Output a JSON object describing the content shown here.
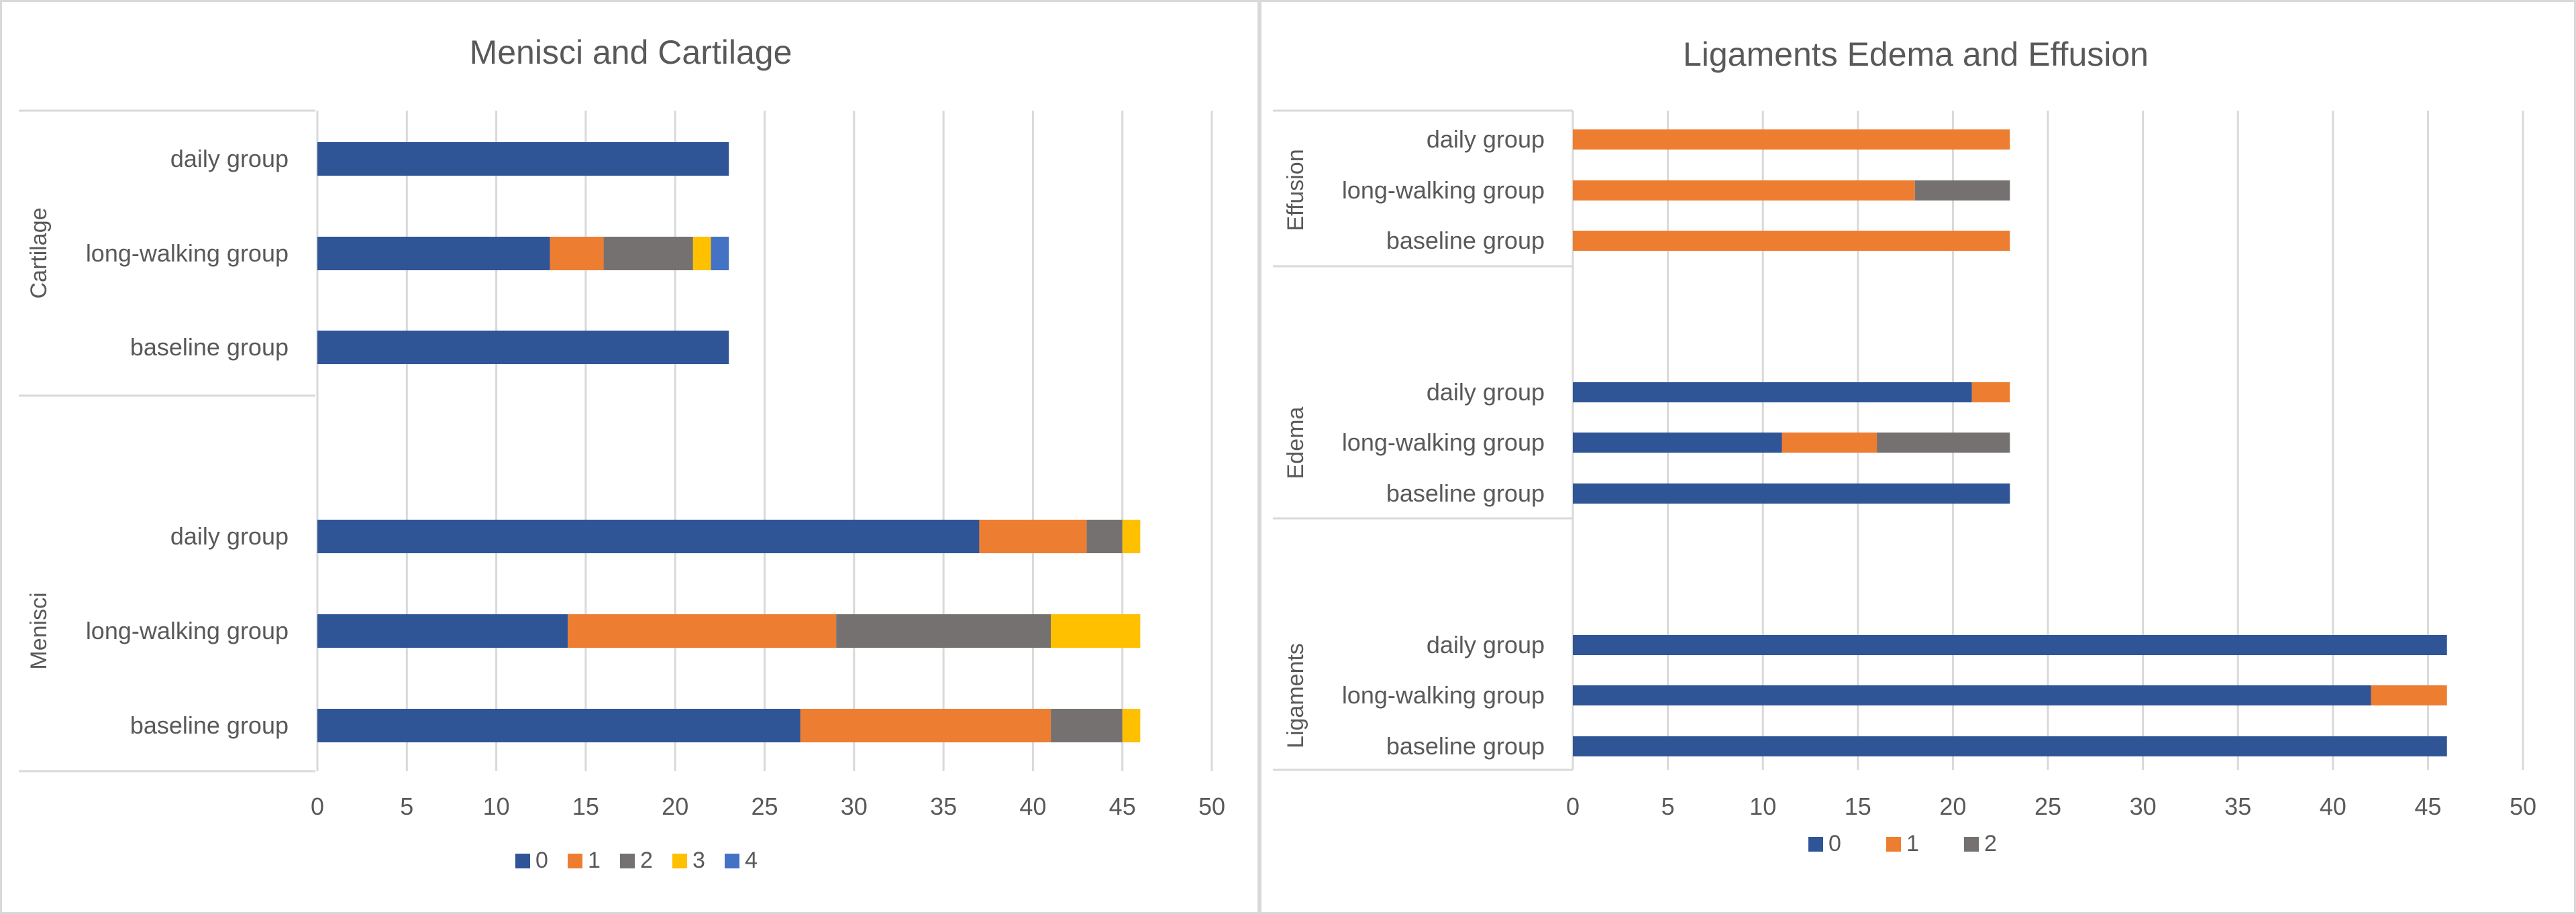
{
  "chart_data": [
    {
      "type": "bar",
      "orientation": "horizontal",
      "stacked": true,
      "title": "Menisci and Cartilage",
      "xlim": [
        0,
        50
      ],
      "x_ticks": [
        "0",
        "5",
        "10",
        "15",
        "20",
        "25",
        "30",
        "35",
        "40",
        "45",
        "50"
      ],
      "grid": true,
      "legend_position": "bottom",
      "legend": [
        "0",
        "1",
        "2",
        "3",
        "4"
      ],
      "colors": [
        "#2f5597",
        "#ed7d31",
        "#767171",
        "#ffc000",
        "#4472c4"
      ],
      "groups": [
        {
          "label": "Cartilage",
          "rows": [
            {
              "label": "daily group",
              "values": [
                23,
                0,
                0,
                0,
                0
              ]
            },
            {
              "label": "long-walking group",
              "values": [
                13,
                3,
                5,
                1,
                1
              ]
            },
            {
              "label": "baseline group",
              "values": [
                23,
                0,
                0,
                0,
                0
              ]
            }
          ]
        },
        {
          "label": "Menisci",
          "rows": [
            {
              "label": "daily group",
              "values": [
                37,
                6,
                2,
                1,
                0
              ]
            },
            {
              "label": "long-walking group",
              "values": [
                14,
                15,
                12,
                5,
                0
              ]
            },
            {
              "label": "baseline group",
              "values": [
                27,
                14,
                4,
                1,
                0
              ]
            }
          ]
        }
      ]
    },
    {
      "type": "bar",
      "orientation": "horizontal",
      "stacked": true,
      "title": "Ligaments Edema and Effusion",
      "xlim": [
        0,
        50
      ],
      "x_ticks": [
        "0",
        "5",
        "10",
        "15",
        "20",
        "25",
        "30",
        "35",
        "40",
        "45",
        "50"
      ],
      "grid": true,
      "legend_position": "bottom",
      "legend": [
        "0",
        "1",
        "2"
      ],
      "colors": [
        "#2f5597",
        "#ed7d31",
        "#767171"
      ],
      "groups": [
        {
          "label": "Effusion",
          "rows": [
            {
              "label": "daily  group",
              "values": [
                0,
                23,
                0
              ]
            },
            {
              "label": "long-walking group",
              "values": [
                0,
                18,
                5
              ]
            },
            {
              "label": "baseline group",
              "values": [
                0,
                23,
                0
              ]
            }
          ]
        },
        {
          "label": "Edema",
          "rows": [
            {
              "label": "daily  group",
              "values": [
                21,
                2,
                0
              ]
            },
            {
              "label": "long-walking group",
              "values": [
                11,
                5,
                7
              ]
            },
            {
              "label": "baseline group",
              "values": [
                23,
                0,
                0
              ]
            }
          ]
        },
        {
          "label": "Ligaments",
          "rows": [
            {
              "label": "daily group",
              "values": [
                46,
                0,
                0
              ]
            },
            {
              "label": "long-walking group",
              "values": [
                42,
                4,
                0
              ]
            },
            {
              "label": "baseline group",
              "values": [
                46,
                0,
                0
              ]
            }
          ]
        }
      ]
    }
  ]
}
